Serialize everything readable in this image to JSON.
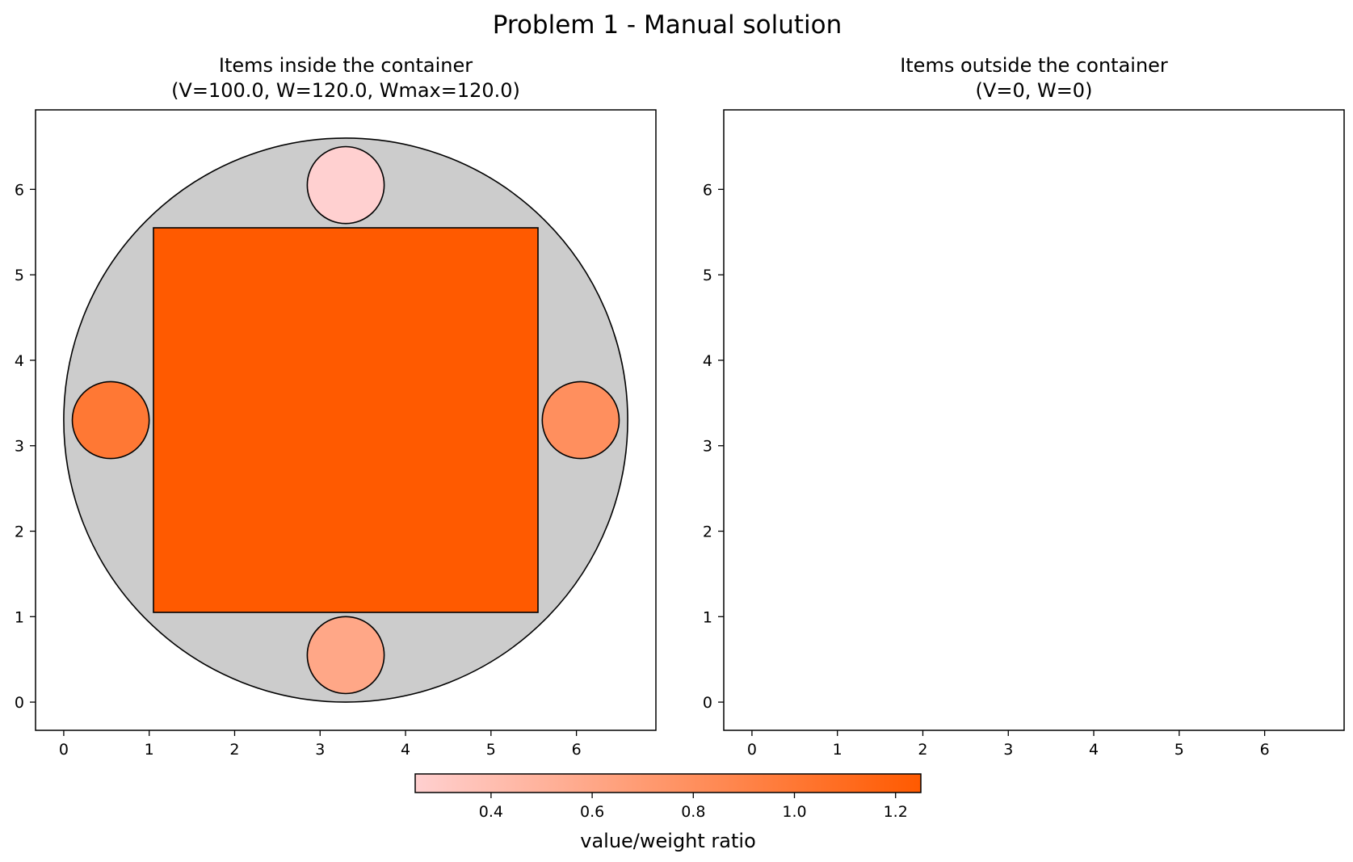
{
  "chart_data": {
    "type": "other",
    "title": "Problem 1 - Manual solution",
    "panels": [
      {
        "title_line1": "Items inside the container",
        "title_line2": "(V=100.0, W=120.0, Wmax=120.0)",
        "xlim": [
          -0.33,
          6.93
        ],
        "ylim": [
          -0.33,
          6.93
        ],
        "xticks": [
          0,
          1,
          2,
          3,
          4,
          5,
          6
        ],
        "yticks": [
          0,
          1,
          2,
          3,
          4,
          5,
          6
        ],
        "container": {
          "shape": "circle",
          "cx": 3.3,
          "cy": 3.3,
          "r": 3.3,
          "color": "#cccccc"
        },
        "items": [
          {
            "shape": "rect",
            "x": 1.05,
            "y": 1.05,
            "w": 4.5,
            "h": 4.5,
            "ratio": 1.25
          },
          {
            "shape": "circle",
            "cx": 3.3,
            "cy": 6.05,
            "r": 0.45,
            "ratio": 0.25
          },
          {
            "shape": "circle",
            "cx": 0.55,
            "cy": 3.3,
            "r": 0.45,
            "ratio": 1.0
          },
          {
            "shape": "circle",
            "cx": 6.05,
            "cy": 3.3,
            "r": 0.45,
            "ratio": 0.8
          },
          {
            "shape": "circle",
            "cx": 3.3,
            "cy": 0.55,
            "r": 0.45,
            "ratio": 0.6
          }
        ]
      },
      {
        "title_line1": "Items outside the container",
        "title_line2": "(V=0, W=0)",
        "xlim": [
          -0.33,
          6.93
        ],
        "ylim": [
          -0.33,
          6.93
        ],
        "xticks": [
          0,
          1,
          2,
          3,
          4,
          5,
          6
        ],
        "yticks": [
          0,
          1,
          2,
          3,
          4,
          5,
          6
        ],
        "items": []
      }
    ],
    "colorbar": {
      "label": "value/weight ratio",
      "range": [
        0.25,
        1.25
      ],
      "ticks": [
        0.4,
        0.6,
        0.8,
        1.0,
        1.2
      ],
      "tick_labels": [
        "0.4",
        "0.6",
        "0.8",
        "1.0",
        "1.2"
      ],
      "color_low": "#ffd0d0",
      "color_high": "#ff5a00"
    }
  }
}
